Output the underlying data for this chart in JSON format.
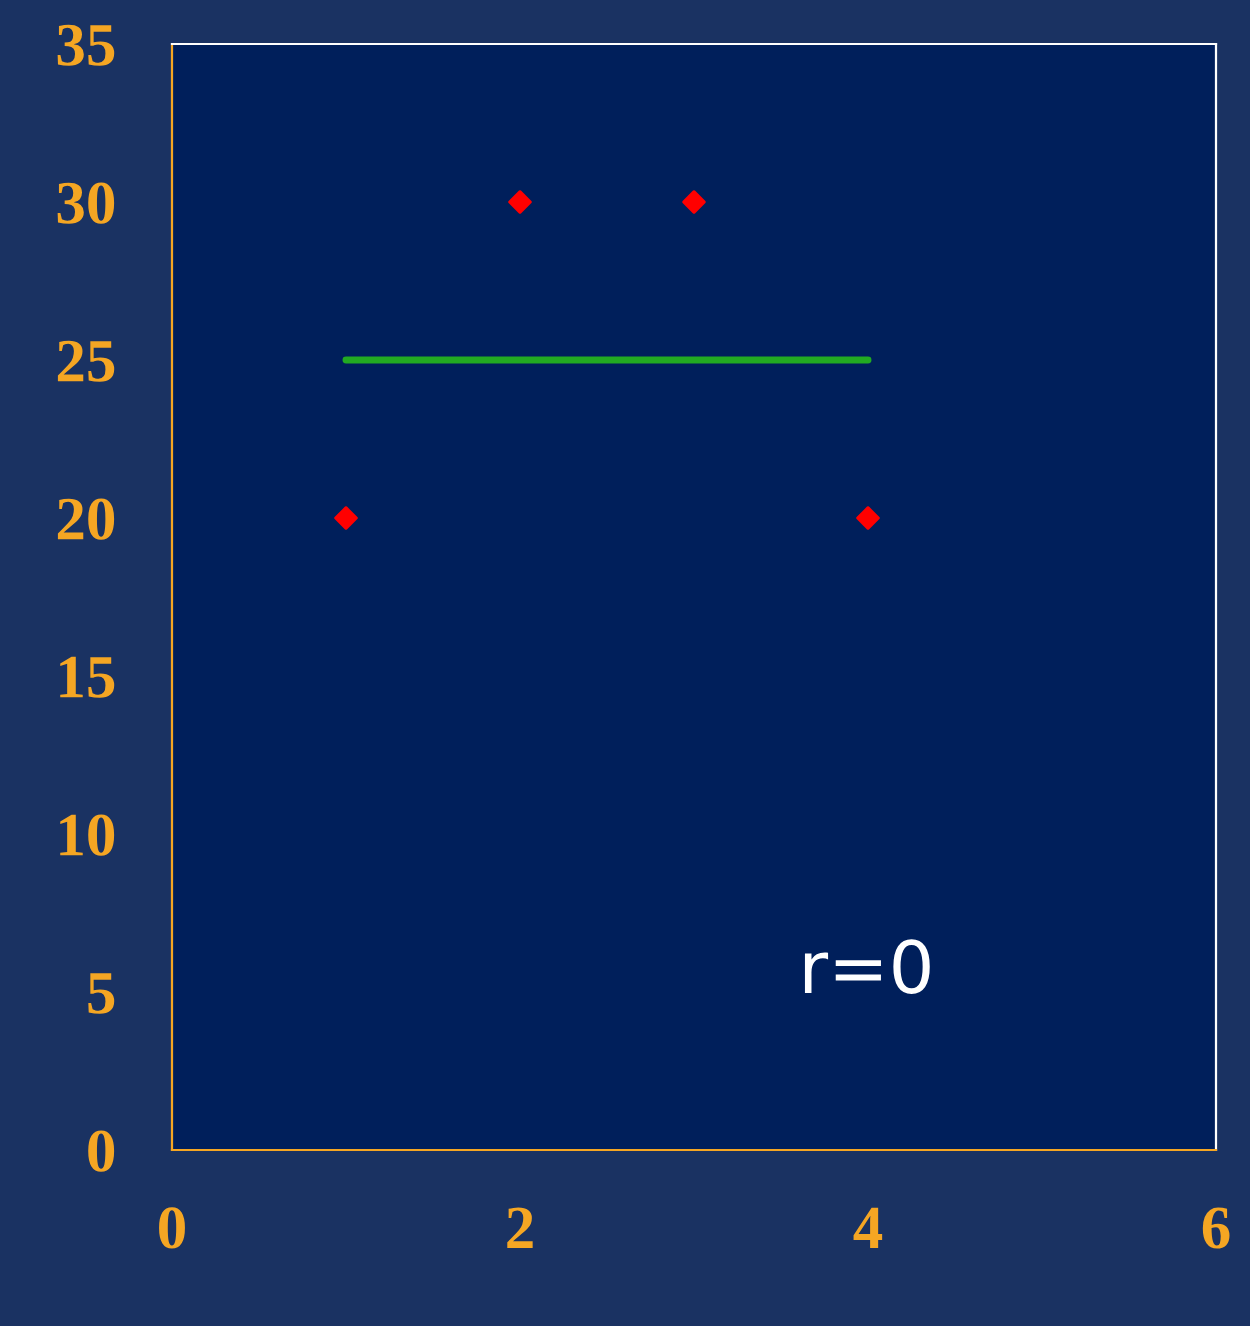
{
  "chart_data": {
    "type": "scatter",
    "series": [
      {
        "x": [
          1,
          2,
          3,
          4
        ],
        "values": [
          20,
          30,
          30,
          20
        ],
        "color": "#ff0000",
        "marker": "diamond"
      },
      {
        "type": "line",
        "x": [
          1,
          4
        ],
        "values": [
          25,
          25
        ],
        "color": "#22aa22",
        "marker": "none",
        "line_style": "solid"
      }
    ],
    "xlim": [
      0,
      6
    ],
    "xticks": [
      0,
      2,
      4,
      6
    ],
    "ylim": [
      0,
      35
    ],
    "yticks": [
      0,
      5,
      10,
      15,
      20,
      25,
      30,
      35
    ],
    "annotations": [
      "r=0"
    ],
    "grid": false,
    "legend": false
  }
}
